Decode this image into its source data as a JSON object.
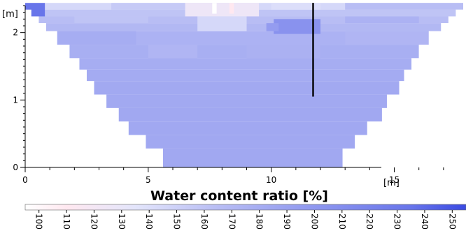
{
  "chart_data": {
    "type": "heatmap",
    "title": "",
    "xlabel": "",
    "ylabel": "",
    "x_unit": "[m]",
    "y_unit": "[m]",
    "xlim": [
      0,
      17.8
    ],
    "ylim": [
      0,
      2.4
    ],
    "x_ticks": [
      "0",
      "5",
      "10",
      "15"
    ],
    "y_ticks": [
      "0",
      "1",
      "2"
    ],
    "grid": false,
    "colorbar": {
      "title": "Water content ratio [%]",
      "min": 95,
      "max": 255,
      "ticks": [
        "100",
        "110",
        "120",
        "130",
        "140",
        "150",
        "160",
        "170",
        "180",
        "190",
        "200",
        "210",
        "220",
        "230",
        "240",
        "250"
      ],
      "stops": [
        {
          "v": 95,
          "c": "#ffffff"
        },
        {
          "v": 110,
          "c": "#ffe8f0"
        },
        {
          "v": 135,
          "c": "#e3e5fb"
        },
        {
          "v": 165,
          "c": "#b8bdf4"
        },
        {
          "v": 200,
          "c": "#8e97ef"
        },
        {
          "v": 235,
          "c": "#6875ea"
        },
        {
          "v": 255,
          "c": "#3a4ae2"
        }
      ]
    },
    "section": {
      "bottom": [
        5.6,
        12.9
      ],
      "top": [
        0.0,
        17.8
      ]
    },
    "rows": [
      {
        "y0": 2.34,
        "y1": 2.44,
        "x0": 0.0,
        "x1": 17.8,
        "value": 145
      },
      {
        "y0": 2.24,
        "y1": 2.34,
        "x0": 0.25,
        "x1": 17.5,
        "value": 160
      },
      {
        "y0": 2.14,
        "y1": 2.24,
        "x0": 0.55,
        "x1": 17.2,
        "value": 165
      },
      {
        "y0": 2.02,
        "y1": 2.14,
        "x0": 0.85,
        "x1": 16.9,
        "value": 170
      },
      {
        "y0": 1.82,
        "y1": 2.02,
        "x0": 1.3,
        "x1": 16.4,
        "value": 175
      },
      {
        "y0": 1.62,
        "y1": 1.82,
        "x0": 1.8,
        "x1": 16.0,
        "value": 178
      },
      {
        "y0": 1.45,
        "y1": 1.62,
        "x0": 2.2,
        "x1": 15.7,
        "value": 180
      },
      {
        "y0": 1.28,
        "y1": 1.45,
        "x0": 2.5,
        "x1": 15.4,
        "value": 182
      },
      {
        "y0": 1.08,
        "y1": 1.28,
        "x0": 2.8,
        "x1": 15.2,
        "value": 183
      },
      {
        "y0": 0.88,
        "y1": 1.08,
        "x0": 3.3,
        "x1": 14.7,
        "value": 183
      },
      {
        "y0": 0.68,
        "y1": 0.88,
        "x0": 3.8,
        "x1": 14.5,
        "value": 184
      },
      {
        "y0": 0.48,
        "y1": 0.68,
        "x0": 4.2,
        "x1": 13.9,
        "value": 184
      },
      {
        "y0": 0.28,
        "y1": 0.48,
        "x0": 4.9,
        "x1": 13.4,
        "value": 184
      },
      {
        "y0": 0.0,
        "y1": 0.28,
        "x0": 5.6,
        "x1": 12.9,
        "value": 184
      }
    ],
    "patches": [
      {
        "x0": 0.0,
        "x1": 0.8,
        "y0": 2.24,
        "y1": 2.44,
        "value": 235
      },
      {
        "x0": 6.5,
        "x1": 9.5,
        "y0": 2.24,
        "y1": 2.44,
        "value": 125
      },
      {
        "x0": 7.0,
        "x1": 9.0,
        "y0": 2.02,
        "y1": 2.24,
        "value": 145
      },
      {
        "x0": 13.0,
        "x1": 17.8,
        "y0": 2.34,
        "y1": 2.44,
        "value": 165
      },
      {
        "x0": 3.5,
        "x1": 6.5,
        "y0": 2.34,
        "y1": 2.44,
        "value": 155
      },
      {
        "x0": 10.0,
        "x1": 12.0,
        "y0": 2.34,
        "y1": 2.44,
        "value": 140
      },
      {
        "x0": 2.0,
        "x1": 5.0,
        "y0": 2.14,
        "y1": 2.24,
        "value": 160
      },
      {
        "x0": 13.0,
        "x1": 16.0,
        "y0": 2.14,
        "y1": 2.24,
        "value": 175
      },
      {
        "x0": 1.3,
        "x1": 4.5,
        "y0": 1.82,
        "y1": 2.02,
        "value": 180
      },
      {
        "x0": 13.0,
        "x1": 16.4,
        "y0": 1.82,
        "y1": 2.02,
        "value": 172
      },
      {
        "x0": 5.0,
        "x1": 7.0,
        "y0": 1.62,
        "y1": 1.82,
        "value": 172
      },
      {
        "x0": 9.0,
        "x1": 12.0,
        "y0": 1.62,
        "y1": 1.82,
        "value": 176
      },
      {
        "x0": 10.1,
        "x1": 12.0,
        "y0": 1.98,
        "y1": 2.2,
        "value": 205
      },
      {
        "x0": 9.8,
        "x1": 10.3,
        "y0": 2.02,
        "y1": 2.14,
        "value": 195
      },
      {
        "x0": 7.6,
        "x1": 7.78,
        "y0": 2.28,
        "y1": 2.44,
        "value": 95
      },
      {
        "x0": 8.3,
        "x1": 8.48,
        "y0": 2.28,
        "y1": 2.44,
        "value": 110
      }
    ],
    "annotations": [
      {
        "type": "vertical-line",
        "x": 11.7,
        "y_from": 1.05,
        "y_to": 2.44
      }
    ]
  }
}
